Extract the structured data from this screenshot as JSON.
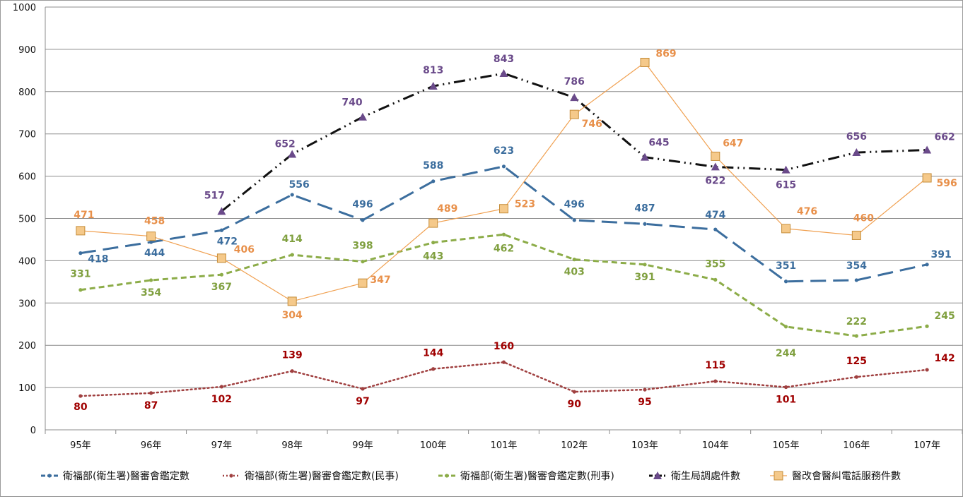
{
  "chart_data": {
    "type": "line",
    "categories": [
      "95年",
      "96年",
      "97年",
      "98年",
      "99年",
      "100年",
      "101年",
      "102年",
      "103年",
      "104年",
      "105年",
      "106年",
      "107年"
    ],
    "ylim": [
      0,
      1000
    ],
    "yticks": [
      "0",
      "100",
      "200",
      "300",
      "400",
      "500",
      "600",
      "700",
      "800",
      "900",
      "1000"
    ],
    "grid": true,
    "legend_position": "bottom",
    "series": [
      {
        "name": "衛福部(衛生署)醫審會鑑定數",
        "color": "#3c6e9e",
        "label_color": "#3c6e9e",
        "style": "dash",
        "marker": "dot",
        "values": [
          418,
          444,
          472,
          556,
          496,
          588,
          623,
          496,
          487,
          474,
          351,
          354,
          391
        ],
        "labels": [
          "418",
          "444",
          "472",
          "556",
          "496",
          "588",
          "623",
          "496",
          "487",
          "474",
          "351",
          "354",
          "391"
        ]
      },
      {
        "name": "衛福部(衛生署)醫審會鑑定數(民事)",
        "color": "#a04040",
        "label_color": "#a00000",
        "style": "dot",
        "marker": "dot",
        "values": [
          80,
          87,
          102,
          139,
          97,
          144,
          160,
          90,
          95,
          115,
          101,
          125,
          142
        ],
        "labels": [
          "80",
          "87",
          "102",
          "139",
          "97",
          "144",
          "160",
          "90",
          "95",
          "115",
          "101",
          "125",
          "142"
        ]
      },
      {
        "name": "衛福部(衛生署)醫審會鑑定數(刑事)",
        "color": "#8cac48",
        "label_color": "#80a040",
        "style": "shortdash",
        "marker": "dot",
        "values": [
          331,
          354,
          367,
          414,
          398,
          443,
          462,
          403,
          391,
          355,
          244,
          222,
          245
        ],
        "labels": [
          "331",
          "354",
          "367",
          "414",
          "398",
          "443",
          "462",
          "403",
          "391",
          "355",
          "244",
          "222",
          "245"
        ]
      },
      {
        "name": "衛生局調處件數",
        "color": "#111111",
        "label_color": "#6a4a8a",
        "style": "dashdot",
        "marker": "triangle",
        "marker_color": "#6a4a8a",
        "values": [
          null,
          null,
          517,
          652,
          740,
          813,
          843,
          786,
          645,
          622,
          615,
          656,
          662
        ],
        "labels": [
          "",
          "",
          "517",
          "652",
          "740",
          "813",
          "843",
          "786",
          "645",
          "622",
          "615",
          "656",
          "662"
        ]
      },
      {
        "name": "醫改會醫糾電話服務件數",
        "color": "#f0a050",
        "label_color": "#e8904a",
        "style": "solid",
        "marker": "square",
        "marker_color": "#f5c98a",
        "values": [
          471,
          458,
          406,
          304,
          347,
          489,
          523,
          746,
          869,
          647,
          476,
          460,
          596
        ],
        "labels": [
          "471",
          "458",
          "406",
          "304",
          "347",
          "489",
          "523",
          "746",
          "869",
          "647",
          "476",
          "460",
          "596"
        ]
      }
    ]
  }
}
